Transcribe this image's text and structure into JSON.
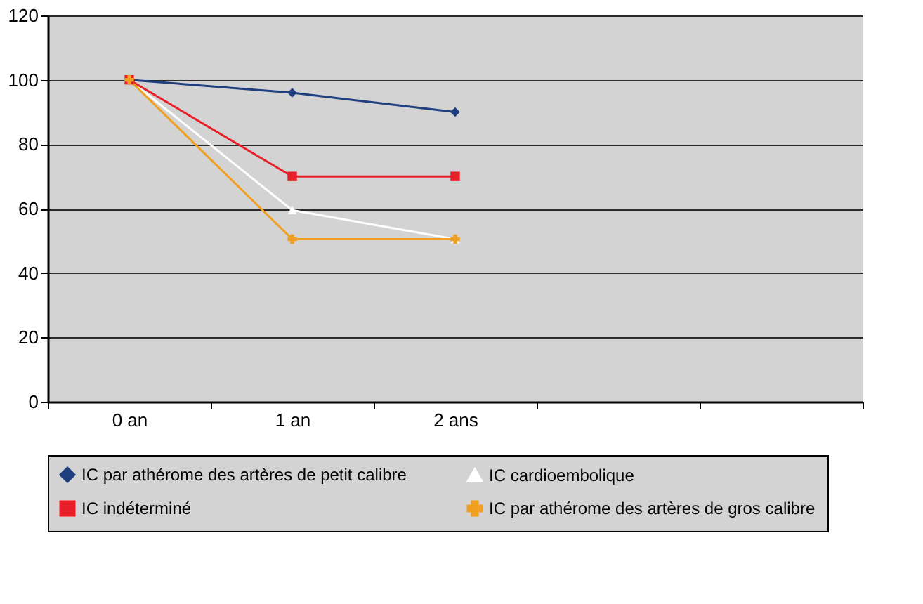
{
  "chart_data": {
    "type": "line",
    "categories": [
      "0 an",
      "1 an",
      "2 ans",
      null,
      null
    ],
    "series": [
      {
        "name": "IC par athérome des artères de petit calibre",
        "color": "#1f3f7f",
        "marker": "diamond",
        "values": [
          100,
          96,
          90,
          null,
          null
        ]
      },
      {
        "name": "IC cardioembolique",
        "color": "#ffffff",
        "marker": "triangle",
        "values": [
          100,
          59.5,
          50.5,
          null,
          null
        ]
      },
      {
        "name": "IC indéterminé",
        "color": "#e8202a",
        "marker": "square",
        "values": [
          100,
          70,
          70,
          null,
          null
        ]
      },
      {
        "name": "IC par athérome des artères de gros calibre",
        "color": "#f0a020",
        "marker": "cross",
        "values": [
          100,
          50.5,
          50.5,
          null,
          null
        ]
      }
    ],
    "ylim": [
      0,
      120
    ],
    "yticks": [
      0,
      20,
      40,
      60,
      80,
      100,
      120
    ],
    "grid": "y",
    "legend": "bottom",
    "line_style": "solid"
  }
}
